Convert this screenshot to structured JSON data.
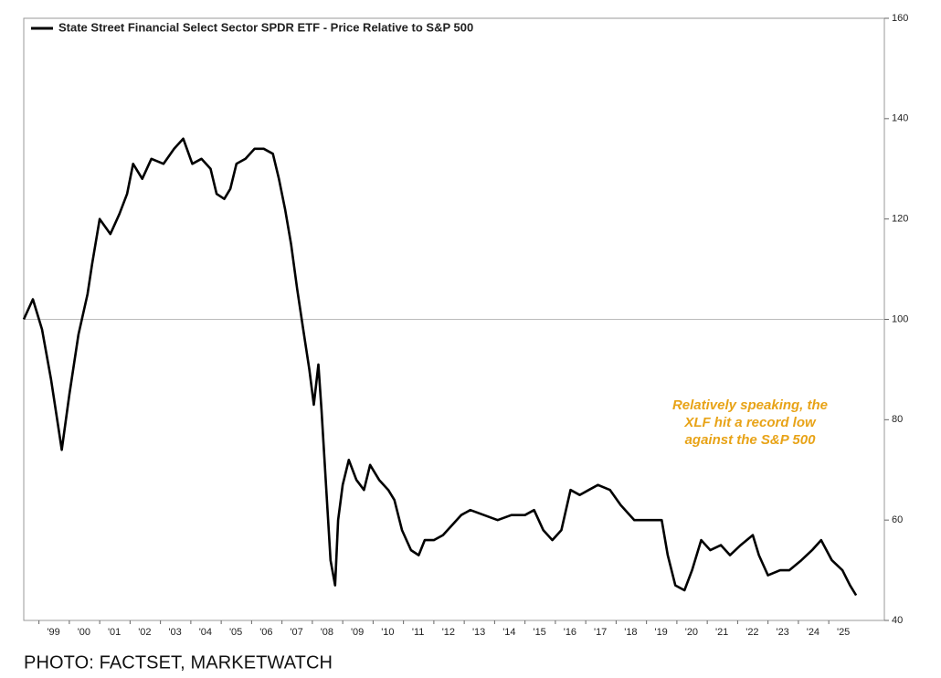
{
  "chart_data": {
    "type": "line",
    "legend_label": "State Street Financial Select Sector SPDR ETF - Price Relative to S&P 500",
    "annotation": [
      "Relatively speaking, the",
      "XLF hit a record low",
      "against the S&P 500"
    ],
    "source": "PHOTO: FACTSET, MARKETWATCH",
    "color": "#000000",
    "annotation_color": "#e8a317",
    "reference_line": 100,
    "xlim": [
      1998.5,
      2026.83
    ],
    "ylim": [
      40,
      160
    ],
    "yticks": [
      40,
      60,
      80,
      100,
      120,
      140,
      160
    ],
    "xticks": [
      {
        "value": 1999,
        "label": "'99"
      },
      {
        "value": 2000,
        "label": "'00"
      },
      {
        "value": 2001,
        "label": "'01"
      },
      {
        "value": 2002,
        "label": "'02"
      },
      {
        "value": 2003,
        "label": "'03"
      },
      {
        "value": 2004,
        "label": "'04"
      },
      {
        "value": 2005,
        "label": "'05"
      },
      {
        "value": 2006,
        "label": "'06"
      },
      {
        "value": 2007,
        "label": "'07"
      },
      {
        "value": 2008,
        "label": "'08"
      },
      {
        "value": 2009,
        "label": "'09"
      },
      {
        "value": 2010,
        "label": "'10"
      },
      {
        "value": 2011,
        "label": "'11"
      },
      {
        "value": 2012,
        "label": "'12"
      },
      {
        "value": 2013,
        "label": "'13"
      },
      {
        "value": 2014,
        "label": "'14"
      },
      {
        "value": 2015,
        "label": "'15"
      },
      {
        "value": 2016,
        "label": "'16"
      },
      {
        "value": 2017,
        "label": "'17"
      },
      {
        "value": 2018,
        "label": "'18"
      },
      {
        "value": 2019,
        "label": "'19"
      },
      {
        "value": 2020,
        "label": "'20"
      },
      {
        "value": 2021,
        "label": "'21"
      },
      {
        "value": 2022,
        "label": "'22"
      },
      {
        "value": 2023,
        "label": "'23"
      },
      {
        "value": 2024,
        "label": "'24"
      },
      {
        "value": 2025,
        "label": "'25"
      }
    ],
    "x": [
      1998.5,
      1998.8,
      1999.1,
      1999.4,
      1999.6,
      1999.75,
      2000.0,
      2000.3,
      2000.6,
      2000.75,
      2001.0,
      2001.35,
      2001.65,
      2001.9,
      2002.1,
      2002.4,
      2002.7,
      2003.1,
      2003.45,
      2003.75,
      2004.05,
      2004.35,
      2004.65,
      2004.85,
      2005.1,
      2005.3,
      2005.5,
      2005.8,
      2006.1,
      2006.4,
      2006.7,
      2006.9,
      2007.1,
      2007.3,
      2007.5,
      2007.7,
      2007.9,
      2008.05,
      2008.2,
      2008.3,
      2008.5,
      2008.6,
      2008.75,
      2008.85,
      2009.0,
      2009.2,
      2009.45,
      2009.7,
      2009.9,
      2010.2,
      2010.5,
      2010.7,
      2010.95,
      2011.25,
      2011.5,
      2011.7,
      2012.0,
      2012.3,
      2012.6,
      2012.9,
      2013.2,
      2013.65,
      2014.1,
      2014.55,
      2015.0,
      2015.3,
      2015.6,
      2015.9,
      2016.2,
      2016.5,
      2016.8,
      2017.1,
      2017.4,
      2017.8,
      2018.15,
      2018.6,
      2019.05,
      2019.5,
      2019.7,
      2019.95,
      2020.25,
      2020.5,
      2020.8,
      2021.1,
      2021.45,
      2021.75,
      2022.1,
      2022.5,
      2022.7,
      2023.0,
      2023.4,
      2023.7,
      2024.1,
      2024.45,
      2024.75,
      2025.1,
      2025.45,
      2025.7,
      2025.9
    ],
    "values": [
      100,
      104,
      98,
      88,
      80,
      74,
      85,
      97,
      105,
      111,
      120,
      117,
      121,
      125,
      131,
      128,
      132,
      131,
      134,
      136,
      131,
      132,
      130,
      125,
      124,
      126,
      131,
      132,
      134,
      134,
      133,
      128,
      122,
      115,
      106,
      98,
      90,
      83,
      91,
      82,
      62,
      52,
      47,
      60,
      67,
      72,
      68,
      66,
      71,
      68,
      66,
      64,
      58,
      54,
      53,
      56,
      56,
      57,
      59,
      61,
      62,
      61,
      60,
      61,
      61,
      62,
      58,
      56,
      58,
      66,
      65,
      66,
      67,
      66,
      63,
      60,
      60,
      60,
      53,
      47,
      46,
      50,
      56,
      54,
      55,
      53,
      55,
      57,
      53,
      49,
      50,
      50,
      52,
      54,
      56,
      52,
      50,
      47,
      45
    ]
  }
}
